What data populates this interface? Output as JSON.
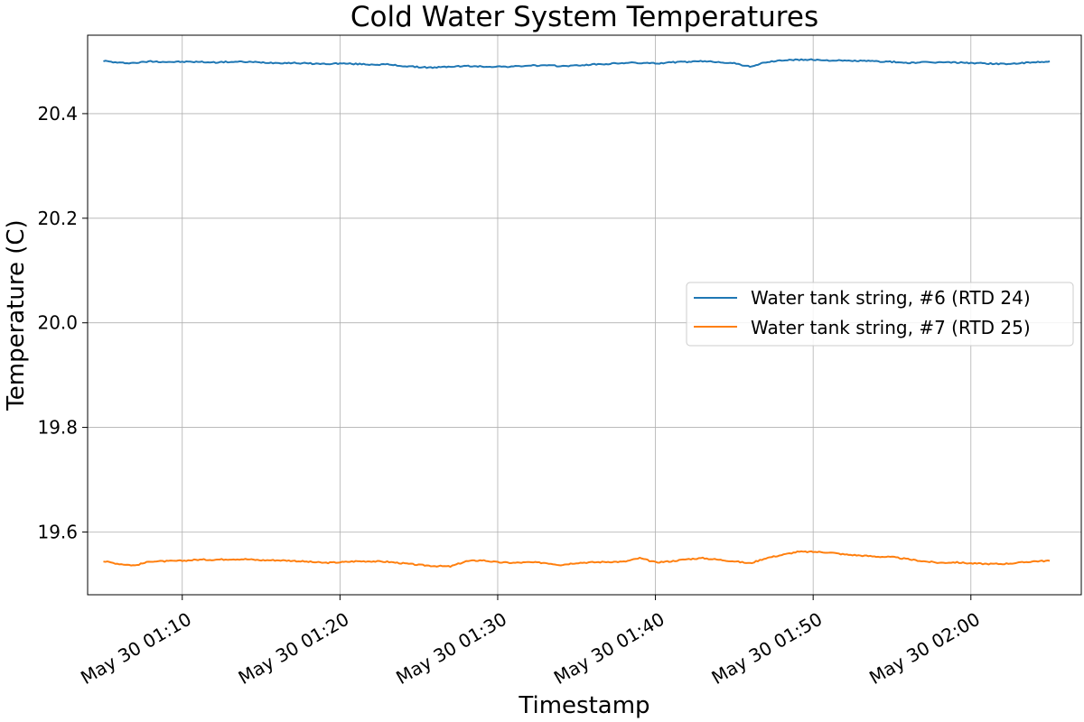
{
  "chart_data": {
    "type": "line",
    "title": "Cold Water System Temperatures",
    "xlabel": "Timestamp",
    "ylabel": "Temperature (C)",
    "xlim": [
      "May 30 01:04:00",
      "May 30 02:07:00"
    ],
    "ylim": [
      19.48,
      20.55
    ],
    "grid": true,
    "legend_position": "center-right",
    "x_ticks": [
      "May 30 01:10",
      "May 30 01:20",
      "May 30 01:30",
      "May 30 01:40",
      "May 30 01:50",
      "May 30 02:00"
    ],
    "y_ticks": [
      "19.6",
      "19.8",
      "20.0",
      "20.2",
      "20.4"
    ],
    "series": [
      {
        "name": "Water tank string, #6 (RTD 24)",
        "color": "#1f77b4",
        "x": [
          "May 30 01:05",
          "May 30 01:06",
          "May 30 01:07",
          "May 30 01:08",
          "May 30 01:09",
          "May 30 01:10",
          "May 30 01:11",
          "May 30 01:12",
          "May 30 01:13",
          "May 30 01:14",
          "May 30 01:15",
          "May 30 01:16",
          "May 30 01:17",
          "May 30 01:18",
          "May 30 01:19",
          "May 30 01:20",
          "May 30 01:21",
          "May 30 01:22",
          "May 30 01:23",
          "May 30 01:24",
          "May 30 01:25",
          "May 30 01:26",
          "May 30 01:27",
          "May 30 01:28",
          "May 30 01:29",
          "May 30 01:30",
          "May 30 01:31",
          "May 30 01:32",
          "May 30 01:33",
          "May 30 01:34",
          "May 30 01:35",
          "May 30 01:36",
          "May 30 01:37",
          "May 30 01:38",
          "May 30 01:39",
          "May 30 01:40",
          "May 30 01:41",
          "May 30 01:42",
          "May 30 01:43",
          "May 30 01:44",
          "May 30 01:45",
          "May 30 01:46",
          "May 30 01:47",
          "May 30 01:48",
          "May 30 01:49",
          "May 30 01:50",
          "May 30 01:51",
          "May 30 01:52",
          "May 30 01:53",
          "May 30 01:54",
          "May 30 01:55",
          "May 30 01:56",
          "May 30 01:57",
          "May 30 01:58",
          "May 30 01:59",
          "May 30 02:00",
          "May 30 02:01",
          "May 30 02:02",
          "May 30 02:03",
          "May 30 02:04",
          "May 30 02:05"
        ],
        "y": [
          20.501,
          20.497,
          20.497,
          20.5,
          20.499,
          20.499,
          20.499,
          20.498,
          20.499,
          20.499,
          20.498,
          20.497,
          20.497,
          20.496,
          20.495,
          20.496,
          20.495,
          20.494,
          20.494,
          20.491,
          20.489,
          20.488,
          20.49,
          20.491,
          20.49,
          20.49,
          20.49,
          20.492,
          20.492,
          20.491,
          20.492,
          20.494,
          20.495,
          20.497,
          20.497,
          20.496,
          20.498,
          20.499,
          20.5,
          20.499,
          20.496,
          20.49,
          20.498,
          20.502,
          20.503,
          20.503,
          20.502,
          20.501,
          20.501,
          20.5,
          20.499,
          20.497,
          20.498,
          20.498,
          20.498,
          20.497,
          20.496,
          20.495,
          20.496,
          20.498,
          20.5
        ]
      },
      {
        "name": "Water tank string, #7 (RTD 25)",
        "color": "#ff7f0e",
        "x": [
          "May 30 01:05",
          "May 30 01:06",
          "May 30 01:07",
          "May 30 01:08",
          "May 30 01:09",
          "May 30 01:10",
          "May 30 01:11",
          "May 30 01:12",
          "May 30 01:13",
          "May 30 01:14",
          "May 30 01:15",
          "May 30 01:16",
          "May 30 01:17",
          "May 30 01:18",
          "May 30 01:19",
          "May 30 01:20",
          "May 30 01:21",
          "May 30 01:22",
          "May 30 01:23",
          "May 30 01:24",
          "May 30 01:25",
          "May 30 01:26",
          "May 30 01:27",
          "May 30 01:28",
          "May 30 01:29",
          "May 30 01:30",
          "May 30 01:31",
          "May 30 01:32",
          "May 30 01:33",
          "May 30 01:34",
          "May 30 01:35",
          "May 30 01:36",
          "May 30 01:37",
          "May 30 01:38",
          "May 30 01:39",
          "May 30 01:40",
          "May 30 01:41",
          "May 30 01:42",
          "May 30 01:43",
          "May 30 01:44",
          "May 30 01:45",
          "May 30 01:46",
          "May 30 01:47",
          "May 30 01:48",
          "May 30 01:49",
          "May 30 01:50",
          "May 30 01:51",
          "May 30 01:52",
          "May 30 01:53",
          "May 30 01:54",
          "May 30 01:55",
          "May 30 01:56",
          "May 30 01:57",
          "May 30 01:58",
          "May 30 01:59",
          "May 30 02:00",
          "May 30 02:01",
          "May 30 02:02",
          "May 30 02:03",
          "May 30 02:04",
          "May 30 02:05"
        ],
        "y": [
          19.544,
          19.539,
          19.536,
          19.544,
          19.544,
          19.545,
          19.547,
          19.547,
          19.548,
          19.548,
          19.546,
          19.546,
          19.545,
          19.543,
          19.541,
          19.542,
          19.544,
          19.544,
          19.543,
          19.54,
          19.537,
          19.535,
          19.534,
          19.544,
          19.546,
          19.542,
          19.541,
          19.542,
          19.541,
          19.537,
          19.541,
          19.542,
          19.543,
          19.543,
          19.55,
          19.542,
          19.544,
          19.548,
          19.55,
          19.547,
          19.544,
          19.54,
          19.55,
          19.556,
          19.562,
          19.562,
          19.561,
          19.557,
          19.555,
          19.553,
          19.552,
          19.548,
          19.544,
          19.541,
          19.542,
          19.54,
          19.539,
          19.539,
          19.541,
          19.544,
          19.545
        ]
      }
    ]
  }
}
